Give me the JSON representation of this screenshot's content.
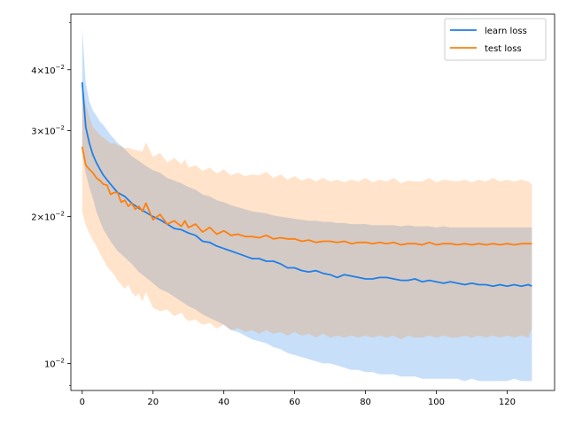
{
  "chart_data": {
    "type": "line",
    "title": "",
    "xlabel": "",
    "ylabel": "",
    "y_scale": "log",
    "xlim": [
      -3.2,
      133.4
    ],
    "ylim": [
      0.0088,
      0.052
    ],
    "x_ticks": [
      {
        "value": 0,
        "label": "0"
      },
      {
        "value": 20,
        "label": "20"
      },
      {
        "value": 40,
        "label": "40"
      },
      {
        "value": 60,
        "label": "60"
      },
      {
        "value": 80,
        "label": "80"
      },
      {
        "value": 100,
        "label": "100"
      },
      {
        "value": 120,
        "label": "120"
      }
    ],
    "y_major_ticks": [
      {
        "value": 0.01,
        "base": "10",
        "exp": "−2",
        "mant": ""
      },
      {
        "value": 0.02,
        "base": "10",
        "exp": "−2",
        "mant": "2×"
      },
      {
        "value": 0.03,
        "base": "10",
        "exp": "−2",
        "mant": "3×"
      },
      {
        "value": 0.04,
        "base": "10",
        "exp": "−2",
        "mant": "4×"
      }
    ],
    "y_minor_ticks": [
      0.009,
      0.05
    ],
    "grid": false,
    "legend_position": "top-right",
    "series": [
      {
        "name": "learn loss",
        "color": "#1f7fe8",
        "band_color": "#1f7fe8",
        "band_opacity": 0.25,
        "x": [
          0,
          1,
          2,
          3,
          4,
          5,
          6,
          8,
          10,
          12,
          14,
          16,
          18,
          20,
          22,
          24,
          26,
          28,
          30,
          32,
          34,
          36,
          38,
          40,
          42,
          44,
          46,
          48,
          50,
          52,
          54,
          56,
          58,
          60,
          62,
          64,
          66,
          68,
          70,
          72,
          74,
          76,
          78,
          80,
          82,
          84,
          86,
          88,
          90,
          92,
          94,
          96,
          98,
          100,
          102,
          104,
          106,
          108,
          110,
          112,
          114,
          116,
          118,
          120,
          122,
          124,
          126,
          127
        ],
        "y": [
          0.0377,
          0.0305,
          0.0283,
          0.0268,
          0.0258,
          0.025,
          0.0243,
          0.0233,
          0.0224,
          0.022,
          0.0213,
          0.0208,
          0.0204,
          0.02,
          0.0197,
          0.0193,
          0.0189,
          0.0188,
          0.0185,
          0.0183,
          0.0178,
          0.0177,
          0.0174,
          0.0172,
          0.017,
          0.0168,
          0.0166,
          0.0164,
          0.0164,
          0.0162,
          0.0162,
          0.016,
          0.0157,
          0.0157,
          0.0155,
          0.0154,
          0.0155,
          0.0153,
          0.0152,
          0.015,
          0.0152,
          0.0151,
          0.015,
          0.0149,
          0.0149,
          0.015,
          0.015,
          0.0149,
          0.0148,
          0.0148,
          0.0149,
          0.0147,
          0.0148,
          0.0147,
          0.0146,
          0.0147,
          0.0146,
          0.0145,
          0.0146,
          0.0145,
          0.0145,
          0.0144,
          0.0145,
          0.0144,
          0.0145,
          0.0144,
          0.0145,
          0.0144
        ],
        "upper": [
          0.0485,
          0.0375,
          0.0345,
          0.033,
          0.0322,
          0.0313,
          0.0308,
          0.0294,
          0.0283,
          0.0275,
          0.0266,
          0.026,
          0.0254,
          0.0249,
          0.0246,
          0.024,
          0.0237,
          0.0234,
          0.023,
          0.0227,
          0.0222,
          0.022,
          0.0216,
          0.0214,
          0.0211,
          0.0209,
          0.0207,
          0.0205,
          0.0204,
          0.0203,
          0.0201,
          0.02,
          0.0199,
          0.0198,
          0.0197,
          0.0196,
          0.0196,
          0.0195,
          0.0195,
          0.0194,
          0.0194,
          0.0193,
          0.0193,
          0.0193,
          0.0192,
          0.0192,
          0.0192,
          0.0192,
          0.0191,
          0.0192,
          0.0191,
          0.0191,
          0.0191,
          0.019,
          0.0191,
          0.019,
          0.019,
          0.019,
          0.019,
          0.019,
          0.019,
          0.019,
          0.019,
          0.019,
          0.019,
          0.019,
          0.019,
          0.019
        ],
        "lower": [
          0.0273,
          0.0245,
          0.023,
          0.0218,
          0.0205,
          0.0196,
          0.0188,
          0.0178,
          0.017,
          0.0165,
          0.016,
          0.0154,
          0.015,
          0.0146,
          0.0142,
          0.014,
          0.0137,
          0.0134,
          0.0131,
          0.0129,
          0.0126,
          0.0124,
          0.0122,
          0.012,
          0.0117,
          0.0116,
          0.0114,
          0.0112,
          0.0111,
          0.011,
          0.0108,
          0.0107,
          0.0105,
          0.0104,
          0.0103,
          0.0102,
          0.0101,
          0.01,
          0.01,
          0.0099,
          0.0098,
          0.0097,
          0.0097,
          0.0096,
          0.0096,
          0.0095,
          0.0095,
          0.0095,
          0.0094,
          0.0094,
          0.0094,
          0.0093,
          0.0093,
          0.0093,
          0.0093,
          0.0093,
          0.0093,
          0.0092,
          0.0093,
          0.0092,
          0.0092,
          0.0092,
          0.0092,
          0.0092,
          0.0093,
          0.0092,
          0.0092,
          0.0092
        ]
      },
      {
        "name": "test loss",
        "color": "#ff7f0e",
        "band_color": "#ff7f0e",
        "band_opacity": 0.22,
        "x": [
          0,
          1,
          2,
          3,
          4,
          5,
          6,
          7,
          8,
          9,
          10,
          11,
          12,
          13,
          14,
          15,
          16,
          17,
          18,
          20,
          22,
          24,
          26,
          28,
          29,
          30,
          32,
          34,
          36,
          38,
          40,
          42,
          44,
          46,
          48,
          50,
          52,
          54,
          56,
          58,
          60,
          62,
          64,
          66,
          68,
          70,
          72,
          74,
          76,
          78,
          80,
          82,
          84,
          86,
          88,
          90,
          92,
          94,
          96,
          98,
          100,
          102,
          104,
          106,
          108,
          110,
          112,
          114,
          116,
          118,
          120,
          122,
          124,
          126,
          127
        ],
        "y": [
          0.0278,
          0.0255,
          0.025,
          0.0246,
          0.024,
          0.0237,
          0.0233,
          0.0232,
          0.0222,
          0.0224,
          0.0224,
          0.0214,
          0.0216,
          0.021,
          0.0213,
          0.0207,
          0.021,
          0.0205,
          0.0213,
          0.0197,
          0.0202,
          0.0193,
          0.0196,
          0.0191,
          0.0196,
          0.019,
          0.0193,
          0.0186,
          0.019,
          0.0184,
          0.0187,
          0.0183,
          0.0184,
          0.0182,
          0.0182,
          0.0181,
          0.0183,
          0.018,
          0.0181,
          0.018,
          0.018,
          0.0178,
          0.0179,
          0.0177,
          0.0178,
          0.0178,
          0.0177,
          0.0178,
          0.0176,
          0.0177,
          0.0177,
          0.0176,
          0.0177,
          0.0176,
          0.0177,
          0.0175,
          0.0176,
          0.0176,
          0.0175,
          0.0177,
          0.0175,
          0.0176,
          0.0176,
          0.0175,
          0.0176,
          0.0175,
          0.0176,
          0.0175,
          0.0176,
          0.0175,
          0.0176,
          0.0175,
          0.0176,
          0.0176,
          0.0176
        ],
        "upper": [
          0.038,
          0.034,
          0.032,
          0.0305,
          0.03,
          0.0294,
          0.029,
          0.0287,
          0.0282,
          0.0283,
          0.028,
          0.0279,
          0.0276,
          0.0277,
          0.0275,
          0.0274,
          0.0273,
          0.0272,
          0.0284,
          0.0265,
          0.027,
          0.0258,
          0.0264,
          0.0256,
          0.0262,
          0.0252,
          0.0255,
          0.0248,
          0.0252,
          0.0245,
          0.025,
          0.0243,
          0.0246,
          0.0242,
          0.0244,
          0.0243,
          0.0247,
          0.024,
          0.0244,
          0.0238,
          0.0242,
          0.0237,
          0.024,
          0.0236,
          0.024,
          0.0236,
          0.0238,
          0.0235,
          0.0238,
          0.0236,
          0.024,
          0.0235,
          0.0238,
          0.0236,
          0.024,
          0.0234,
          0.0237,
          0.0236,
          0.0236,
          0.024,
          0.0235,
          0.0238,
          0.0237,
          0.0236,
          0.0238,
          0.0235,
          0.0238,
          0.0236,
          0.024,
          0.0236,
          0.0238,
          0.0236,
          0.0238,
          0.0236,
          0.0233
        ],
        "lower": [
          0.0205,
          0.0192,
          0.0185,
          0.0179,
          0.0174,
          0.0168,
          0.0163,
          0.0158,
          0.0155,
          0.0152,
          0.0148,
          0.0145,
          0.0142,
          0.0145,
          0.014,
          0.0137,
          0.0139,
          0.0134,
          0.014,
          0.013,
          0.0128,
          0.0129,
          0.0125,
          0.0127,
          0.0124,
          0.0122,
          0.0123,
          0.012,
          0.0121,
          0.0118,
          0.012,
          0.0117,
          0.0118,
          0.0116,
          0.0117,
          0.0115,
          0.0117,
          0.0115,
          0.0116,
          0.0114,
          0.0116,
          0.0114,
          0.0115,
          0.0113,
          0.0115,
          0.0113,
          0.0114,
          0.0113,
          0.0114,
          0.0113,
          0.0114,
          0.0113,
          0.0114,
          0.0113,
          0.0114,
          0.0112,
          0.0114,
          0.0113,
          0.0113,
          0.0114,
          0.0113,
          0.0114,
          0.0113,
          0.0113,
          0.0114,
          0.0113,
          0.0114,
          0.0113,
          0.0114,
          0.0113,
          0.0114,
          0.0113,
          0.0114,
          0.0113,
          0.0118
        ]
      }
    ]
  }
}
